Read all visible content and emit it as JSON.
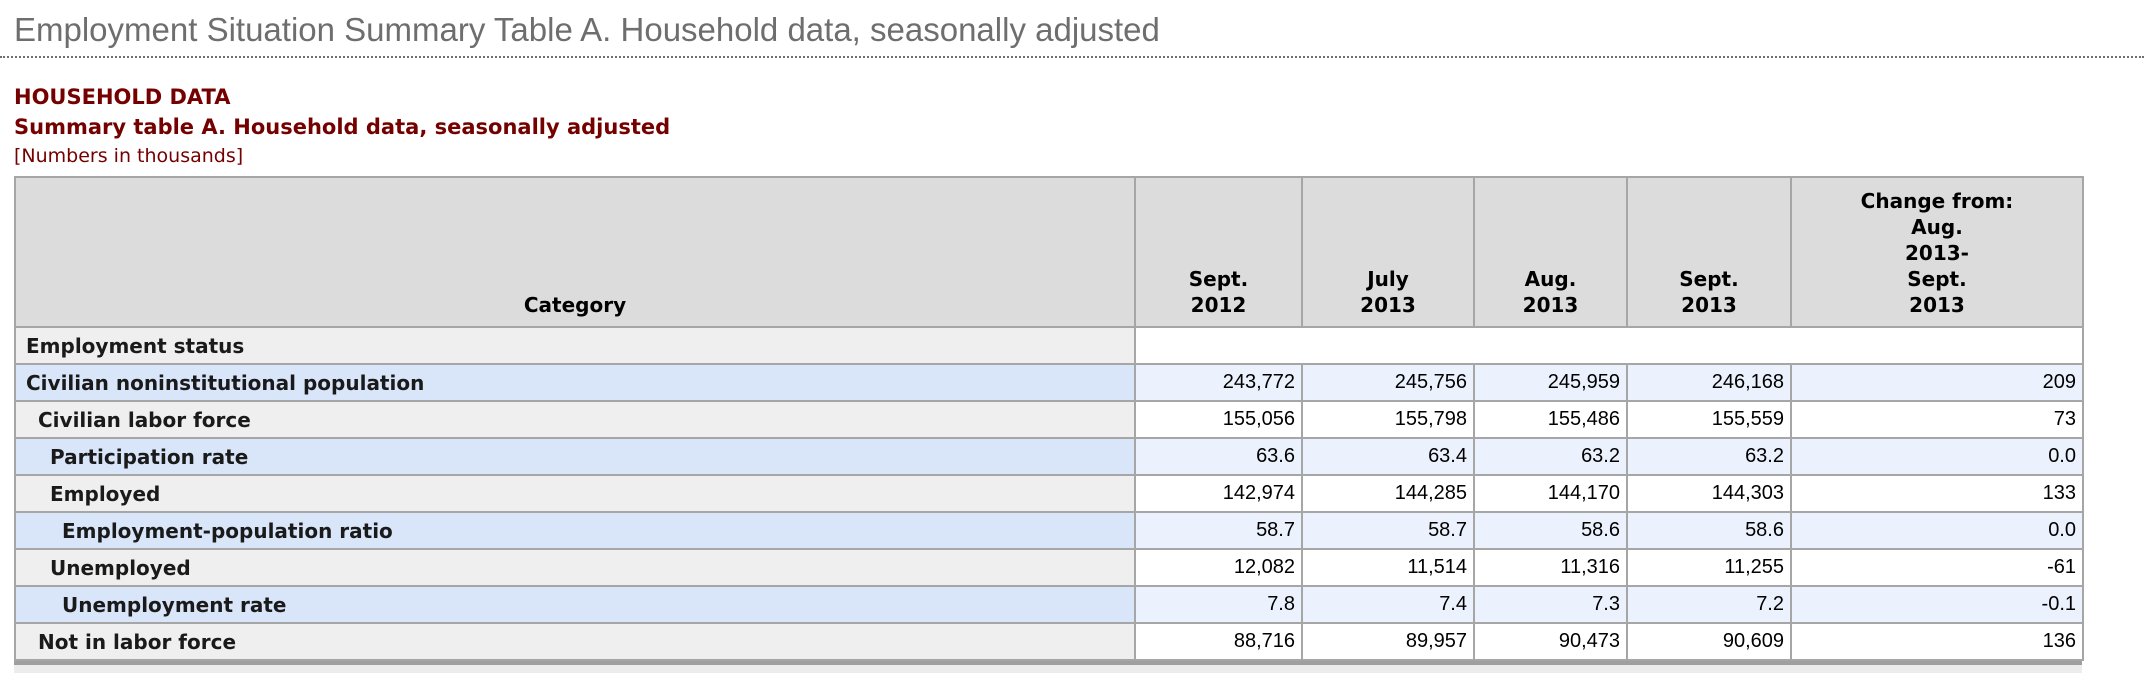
{
  "page": {
    "title": "Employment Situation Summary Table A. Household data, seasonally adjusted",
    "section_heading": "HOUSEHOLD DATA",
    "table_title": "Summary table A. Household data, seasonally adjusted",
    "units_note": "[Numbers in thousands]"
  },
  "colors": {
    "title_gray": "#6e6e6e",
    "heading_maroon": "#740000",
    "header_bg": "#dcdcdc",
    "gray_label_bg": "#efefef",
    "blue_label_bg": "#d9e6fa",
    "blue_data_bg": "#ecf2fd",
    "white_data_bg": "#ffffff",
    "grid_border": "#a6a6a6"
  },
  "table": {
    "category_header": "Category",
    "column_headers": [
      {
        "lines": [
          "Sept.",
          "2012"
        ]
      },
      {
        "lines": [
          "July",
          "2013"
        ]
      },
      {
        "lines": [
          "Aug.",
          "2013"
        ]
      },
      {
        "lines": [
          "Sept.",
          "2013"
        ]
      },
      {
        "lines": [
          "Change from:",
          "Aug.",
          "2013-",
          "Sept.",
          "2013"
        ]
      }
    ],
    "rows": [
      {
        "label": "Employment status",
        "indent": 0,
        "stripe": "gray",
        "section": true,
        "values": []
      },
      {
        "label": "Civilian noninstitutional population",
        "indent": 0,
        "stripe": "blue",
        "section": false,
        "values": [
          "243,772",
          "245,756",
          "245,959",
          "246,168",
          "209"
        ]
      },
      {
        "label": "Civilian labor force",
        "indent": 1,
        "stripe": "gray",
        "section": false,
        "values": [
          "155,056",
          "155,798",
          "155,486",
          "155,559",
          "73"
        ]
      },
      {
        "label": "Participation rate",
        "indent": 2,
        "stripe": "blue",
        "section": false,
        "values": [
          "63.6",
          "63.4",
          "63.2",
          "63.2",
          "0.0"
        ]
      },
      {
        "label": "Employed",
        "indent": 2,
        "stripe": "gray",
        "section": false,
        "values": [
          "142,974",
          "144,285",
          "144,170",
          "144,303",
          "133"
        ]
      },
      {
        "label": "Employment-population ratio",
        "indent": 3,
        "stripe": "blue",
        "section": false,
        "values": [
          "58.7",
          "58.7",
          "58.6",
          "58.6",
          "0.0"
        ]
      },
      {
        "label": "Unemployed",
        "indent": 2,
        "stripe": "gray",
        "section": false,
        "values": [
          "12,082",
          "11,514",
          "11,316",
          "11,255",
          "-61"
        ]
      },
      {
        "label": "Unemployment rate",
        "indent": 3,
        "stripe": "blue",
        "section": false,
        "values": [
          "7.8",
          "7.4",
          "7.3",
          "7.2",
          "-0.1"
        ]
      },
      {
        "label": "Not in labor force",
        "indent": 1,
        "stripe": "gray",
        "section": false,
        "values": [
          "88,716",
          "89,957",
          "90,473",
          "90,609",
          "136"
        ]
      }
    ]
  }
}
